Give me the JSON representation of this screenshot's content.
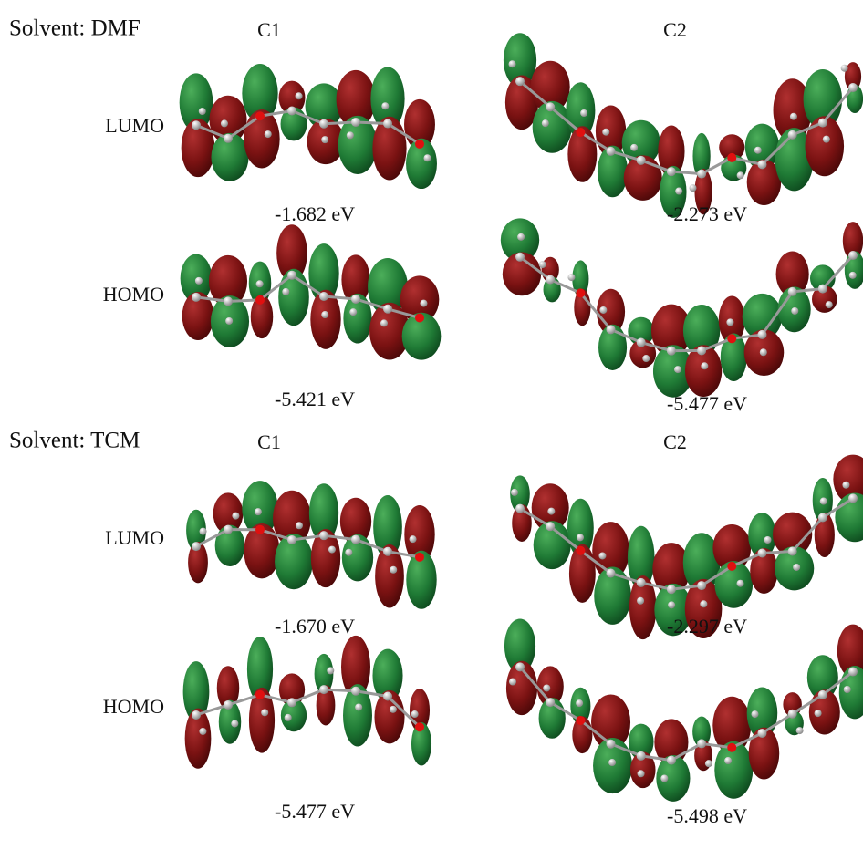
{
  "sections": [
    {
      "title": "Solvent: DMF",
      "columns": [
        "C1",
        "C2"
      ],
      "rows": [
        {
          "label": "LUMO",
          "energies": [
            "-1.682 eV",
            "-2.273 eV"
          ]
        },
        {
          "label": "HOMO",
          "energies": [
            "-5.421 eV",
            "-5.477 eV"
          ]
        }
      ]
    },
    {
      "title": "Solvent: TCM",
      "columns": [
        "C1",
        "C2"
      ],
      "rows": [
        {
          "label": "LUMO",
          "energies": [
            "-1.670 eV",
            "-2.297 eV"
          ]
        },
        {
          "label": "HOMO",
          "energies": [
            "-5.477 eV",
            "-5.498 eV"
          ]
        }
      ]
    }
  ]
}
